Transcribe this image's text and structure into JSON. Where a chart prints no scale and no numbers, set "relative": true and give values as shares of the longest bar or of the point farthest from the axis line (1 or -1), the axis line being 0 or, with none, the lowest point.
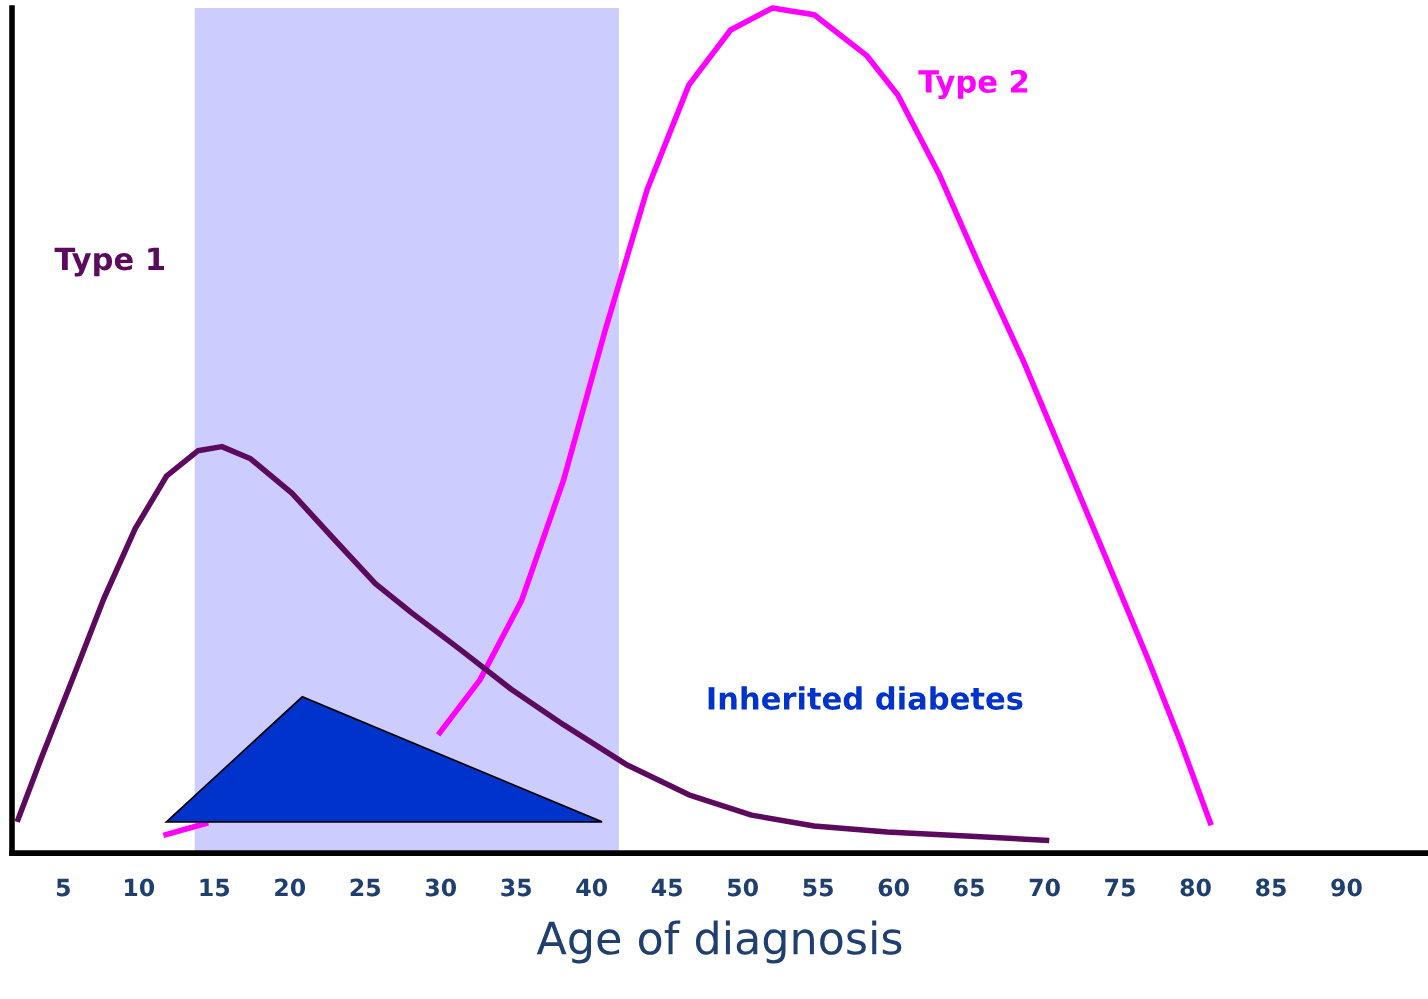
{
  "chart_data": {
    "type": "line",
    "relative": true,
    "xlabel": "Age of diagnosis",
    "xlim": [
      1.6,
      95.4
    ],
    "xticks": [
      5,
      10,
      15,
      20,
      25,
      30,
      35,
      40,
      45,
      50,
      55,
      60,
      65,
      70,
      75,
      80,
      85,
      90
    ],
    "tick_labels": "x",
    "grid": false,
    "legend": false,
    "marker": "none",
    "line_style": "solid",
    "bands": [
      {
        "axis": "x",
        "from": 13.7,
        "to": 41.8,
        "color": "#ccccff"
      }
    ],
    "series": [
      {
        "name": "Type 1",
        "color": "#5c0a5e",
        "x": [
          1.94,
          3.53,
          5.61,
          7.68,
          9.76,
          11.83,
          13.91,
          15.5,
          17.37,
          20.14,
          22.91,
          25.67,
          28.1,
          31.21,
          34.67,
          38.13,
          42.28,
          46.44,
          50.59,
          54.74,
          59.58,
          65.12,
          70.31
        ],
        "values": [
          0.037,
          0.112,
          0.206,
          0.301,
          0.384,
          0.446,
          0.476,
          0.481,
          0.467,
          0.426,
          0.372,
          0.319,
          0.284,
          0.242,
          0.194,
          0.152,
          0.105,
          0.069,
          0.045,
          0.032,
          0.025,
          0.02,
          0.015
        ]
      },
      {
        "name": "Type 2",
        "color": "#ff00ff",
        "x": [
          11.63,
          14.6,
          18.75,
          22.91,
          26.37,
          29.83,
          32.6,
          35.36,
          38.13,
          40.9,
          43.67,
          46.44,
          49.2,
          51.97,
          54.74,
          58.2,
          60.28,
          63.05,
          65.81,
          68.58,
          71.35,
          74.12,
          76.89,
          78.96,
          81.04
        ],
        "values": [
          0.021,
          0.036,
          null,
          null,
          null,
          0.14,
          0.205,
          0.299,
          0.441,
          0.619,
          0.785,
          0.909,
          0.974,
          1.0,
          0.992,
          0.944,
          0.897,
          0.802,
          0.69,
          0.583,
          0.465,
          0.347,
          0.228,
          0.134,
          0.033
        ]
      },
      {
        "name": "Inherited diabetes",
        "type": "area",
        "color": "#0033cc",
        "x": [
          11.83,
          20.83,
          40.69
        ],
        "values": [
          0.037,
          0.185,
          0.037
        ]
      }
    ]
  }
}
